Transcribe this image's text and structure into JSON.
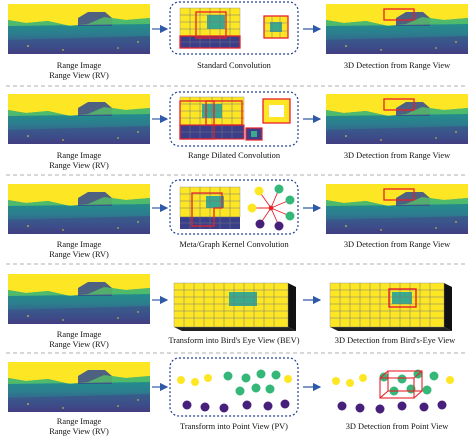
{
  "rows": [
    {
      "left_label_1": "Range Image",
      "left_label_2": "Range View (RV)",
      "middle_label": "Standard Convolution",
      "right_label": "3D Detection from Range View"
    },
    {
      "left_label_1": "Range Image",
      "left_label_2": "Range View (RV)",
      "middle_label": "Range Dilated Convolution",
      "right_label": "3D Detection from Range View"
    },
    {
      "left_label_1": "Range Image",
      "left_label_2": "Range View (RV)",
      "middle_label": "Meta/Graph Kernel Convolution",
      "right_label": "3D Detection from Range View"
    },
    {
      "left_label_1": "Range Image",
      "left_label_2": "Range View (RV)",
      "middle_label": "Transform into Bird's Eye View (BEV)",
      "right_label": "3D Detection from Bird's-Eye View"
    },
    {
      "left_label_1": "Range Image",
      "left_label_2": "Range View (RV)",
      "middle_label": "Transform into Point View (PV)",
      "right_label": "3D Detection from Point View"
    }
  ],
  "colors": {
    "grid_yellow": "#fde725",
    "grid_teal": "#3aaa8c",
    "grid_navy": "#3b3f8a",
    "box_red": "#e8202a",
    "arrow_blue": "#2e59a8",
    "dotted_border": "#24408e",
    "separator": "#999999",
    "point_green": "#35b779",
    "point_purple": "#46207a",
    "point_yellow": "#fde725"
  }
}
